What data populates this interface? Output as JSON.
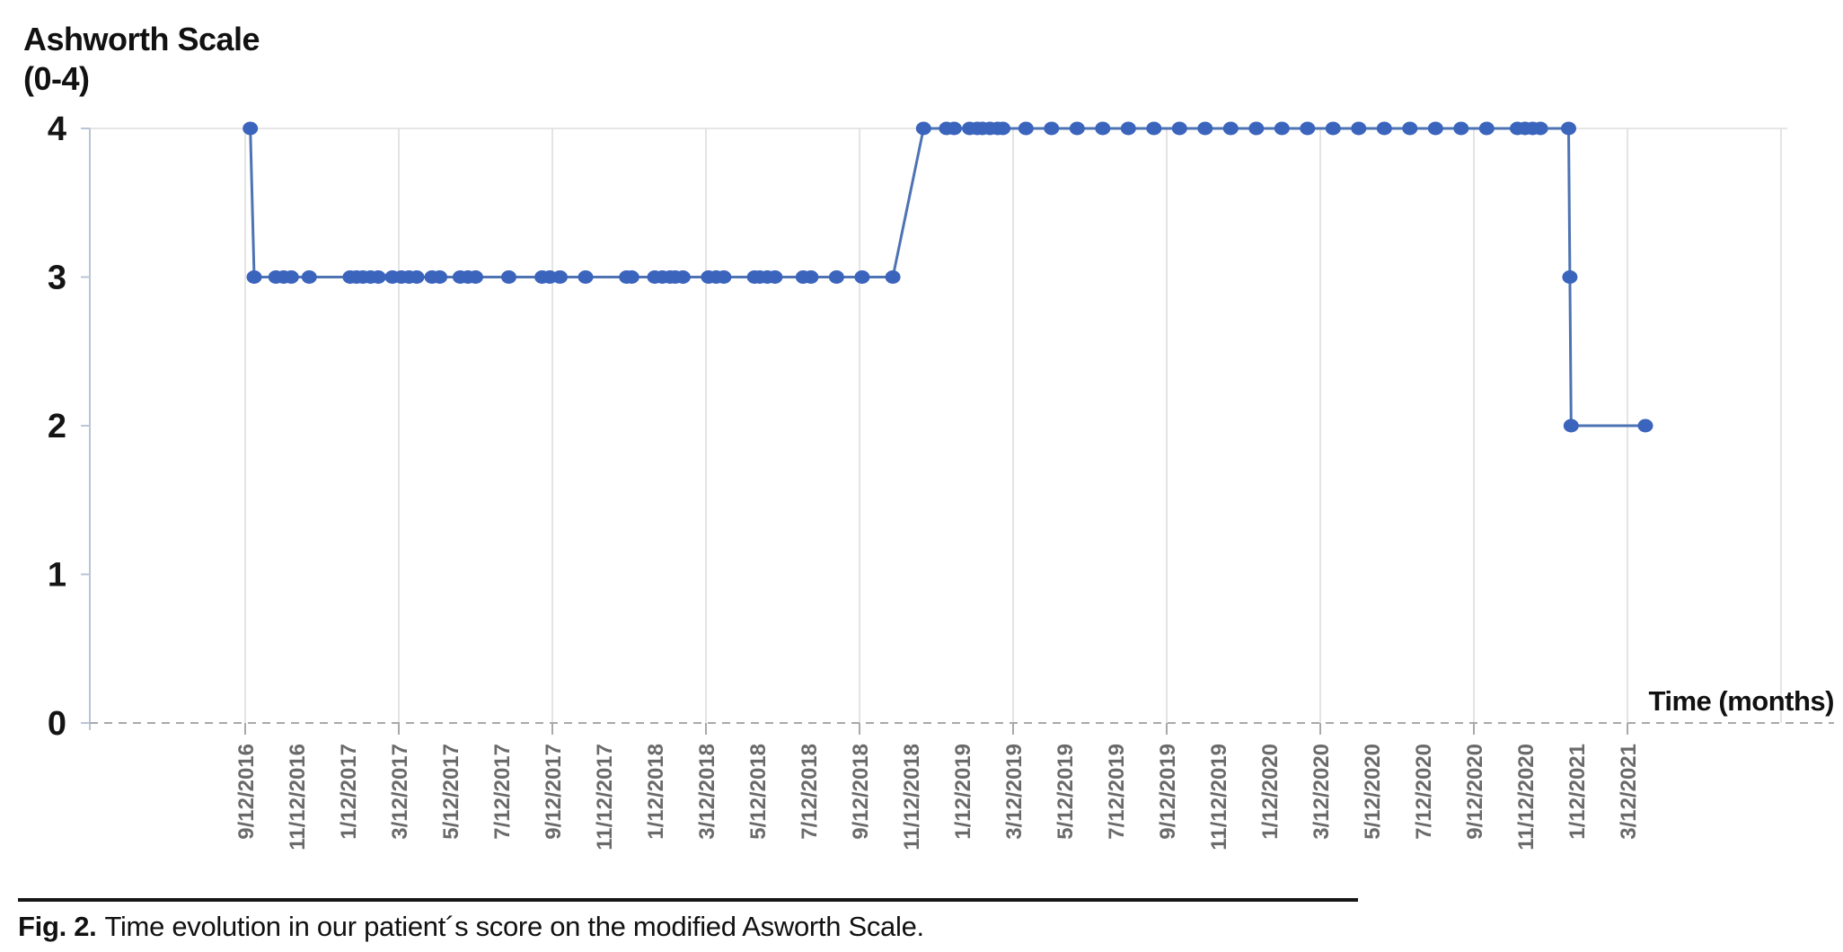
{
  "figure": {
    "caption_label": "Fig. 2.",
    "caption_text": "Time evolution in our patient´s score on the modified Asworth Scale."
  },
  "chart_data": {
    "type": "line",
    "title": "",
    "ylabel": "Ashworth Scale (0-4)",
    "ylabel_lines": [
      "Ashworth Scale",
      "(0-4)"
    ],
    "xlabel": "Time (months)",
    "y_ticks": [
      4,
      3,
      2,
      1,
      0
    ],
    "ylim": [
      0,
      4
    ],
    "x_unit": "months since first visit (9/12/2016); tick spacing = 2 months",
    "x_tick_interval_months": 2,
    "gridline_every_n_ticks": 3,
    "extra_right_gridline_month": 60,
    "horizontal_gridline_at_value": 4,
    "zero_axis_style": "dashed",
    "x_tick_labels": [
      "9/12/2016",
      "11/12/2016",
      "1/12/2017",
      "3/12/2017",
      "5/12/2017",
      "7/12/2017",
      "9/12/2017",
      "11/12/2017",
      "1/12/2018",
      "3/12/2018",
      "5/12/2018",
      "7/12/2018",
      "9/12/2018",
      "11/12/2018",
      "1/12/2019",
      "3/12/2019",
      "5/12/2019",
      "7/12/2019",
      "9/12/2019",
      "11/12/2019",
      "1/12/2020",
      "3/12/2020",
      "5/12/2020",
      "7/12/2020",
      "9/12/2020",
      "11/12/2020",
      "1/12/2021",
      "3/12/2021"
    ],
    "series": [
      {
        "name": "Modified Ashworth Scale score",
        "points": [
          [
            0.2,
            4
          ],
          [
            0.35,
            3
          ],
          [
            1.2,
            3
          ],
          [
            1.5,
            3
          ],
          [
            1.8,
            3
          ],
          [
            2.5,
            3
          ],
          [
            4.1,
            3
          ],
          [
            4.35,
            3
          ],
          [
            4.6,
            3
          ],
          [
            4.9,
            3
          ],
          [
            5.2,
            3
          ],
          [
            5.75,
            3
          ],
          [
            6.1,
            3
          ],
          [
            6.4,
            3
          ],
          [
            6.7,
            3
          ],
          [
            7.3,
            3
          ],
          [
            7.6,
            3
          ],
          [
            8.4,
            3
          ],
          [
            8.7,
            3
          ],
          [
            9.0,
            3
          ],
          [
            10.3,
            3
          ],
          [
            11.6,
            3
          ],
          [
            11.9,
            3
          ],
          [
            12.3,
            3
          ],
          [
            13.3,
            3
          ],
          [
            14.9,
            3
          ],
          [
            15.1,
            3
          ],
          [
            16.0,
            3
          ],
          [
            16.3,
            3
          ],
          [
            16.6,
            3
          ],
          [
            16.8,
            3
          ],
          [
            17.1,
            3
          ],
          [
            18.1,
            3
          ],
          [
            18.4,
            3
          ],
          [
            18.7,
            3
          ],
          [
            19.9,
            3
          ],
          [
            20.1,
            3
          ],
          [
            20.4,
            3
          ],
          [
            20.7,
            3
          ],
          [
            21.8,
            3
          ],
          [
            22.1,
            3
          ],
          [
            23.1,
            3
          ],
          [
            24.1,
            3
          ],
          [
            25.3,
            3
          ],
          [
            26.5,
            4
          ],
          [
            27.4,
            4
          ],
          [
            27.7,
            4
          ],
          [
            28.3,
            4
          ],
          [
            28.6,
            4
          ],
          [
            28.8,
            4
          ],
          [
            29.1,
            4
          ],
          [
            29.4,
            4
          ],
          [
            29.6,
            4
          ],
          [
            30.5,
            4
          ],
          [
            31.5,
            4
          ],
          [
            32.5,
            4
          ],
          [
            33.5,
            4
          ],
          [
            34.5,
            4
          ],
          [
            35.5,
            4
          ],
          [
            36.5,
            4
          ],
          [
            37.5,
            4
          ],
          [
            38.5,
            4
          ],
          [
            39.5,
            4
          ],
          [
            40.5,
            4
          ],
          [
            41.5,
            4
          ],
          [
            42.5,
            4
          ],
          [
            43.5,
            4
          ],
          [
            44.5,
            4
          ],
          [
            45.5,
            4
          ],
          [
            46.5,
            4
          ],
          [
            47.5,
            4
          ],
          [
            48.5,
            4
          ],
          [
            49.7,
            4
          ],
          [
            50.0,
            4
          ],
          [
            50.3,
            4
          ],
          [
            50.6,
            4
          ],
          [
            51.7,
            4
          ],
          [
            51.75,
            3
          ],
          [
            51.8,
            2
          ],
          [
            54.7,
            2
          ]
        ]
      }
    ],
    "colors": {
      "marker": "#3b64bd",
      "line": "#4d73b3",
      "gridline": "#dddddd",
      "axis": "#b9c4d5",
      "zero_line": "#a9a9a9",
      "x_tick_label": "#6a6a6a",
      "y_tick_label": "#141414"
    }
  }
}
